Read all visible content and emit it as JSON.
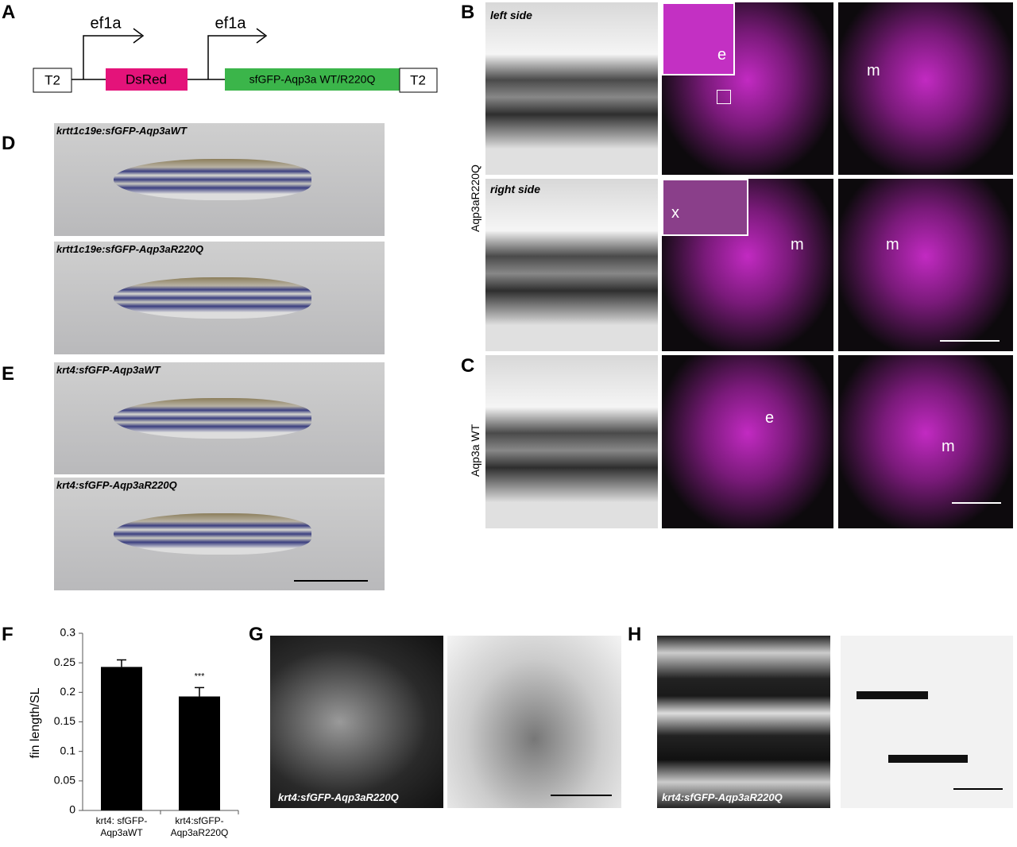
{
  "panel_labels": [
    "A",
    "B",
    "C",
    "D",
    "E",
    "F",
    "G",
    "H"
  ],
  "construct": {
    "promoters": [
      "ef1a",
      "ef1a"
    ],
    "elements": [
      "T2",
      "DsRed",
      "sfGFP-Aqp3a WT/R220Q",
      "T2"
    ]
  },
  "fish_photos": [
    "krtt1c19e:sfGFP-Aqp3aWT",
    "krtt1c19e:sfGFP-Aqp3aR220Q",
    "krt4:sfGFP-Aqp3aWT",
    "krt4:sfGFP-Aqp3aR220Q"
  ],
  "microscopy": {
    "row_labels": [
      "Aqp3aR220Q",
      "Aqp3a WT"
    ],
    "side_labels": [
      "left side",
      "right side"
    ],
    "annotations": [
      "e",
      "m",
      "x",
      "m",
      "m",
      "e",
      "m"
    ]
  },
  "chart_data": {
    "type": "bar",
    "ylabel": "fin length/SL",
    "categories": [
      "krt4: sfGFP-Aqp3aWT",
      "krt4:sfGFP-Aqp3aR220Q"
    ],
    "values": [
      0.243,
      0.193
    ],
    "errors": [
      0.012,
      0.015
    ],
    "annotation": "***",
    "color": "#000000",
    "ylim": [
      0,
      0.3
    ],
    "yticks": [
      0,
      0.05,
      0.1,
      0.15,
      0.2,
      0.25,
      0.3
    ]
  },
  "tail_images": {
    "caption": "krt4:sfGFP-Aqp3aR220Q"
  },
  "skin_images": {
    "caption": "krt4:sfGFP-Aqp3aR220Q"
  }
}
